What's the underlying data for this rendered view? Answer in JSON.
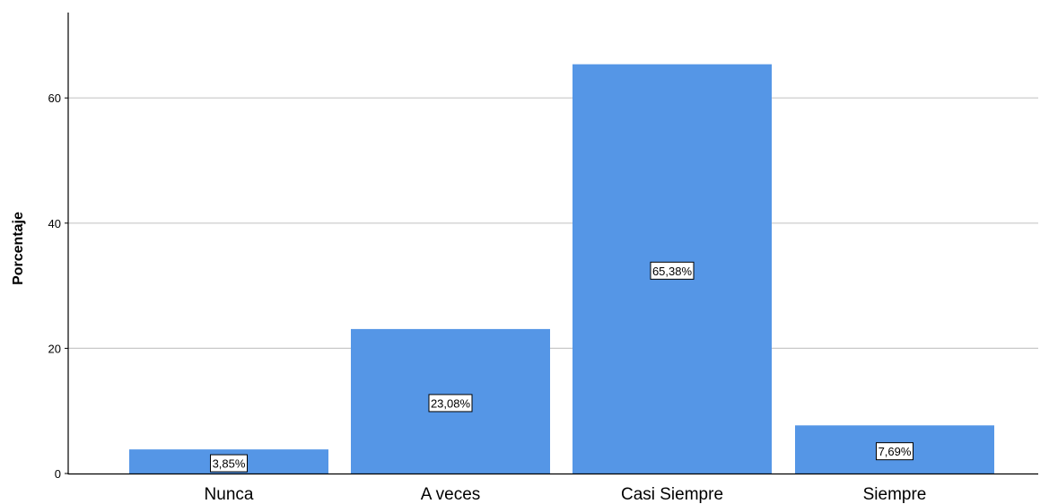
{
  "chart_data": {
    "type": "bar",
    "categories": [
      "Nunca",
      "A veces",
      "Casi Siempre",
      "Siempre"
    ],
    "values": [
      3.85,
      23.08,
      65.38,
      7.69
    ],
    "data_labels": [
      "3,85%",
      "23,08%",
      "65,38%",
      "7,69%"
    ],
    "ylabel": "Porcentaje",
    "xlabel": "",
    "title": "",
    "ylim": [
      0,
      74
    ],
    "yticks": [
      0,
      20,
      40,
      60
    ],
    "ytick_labels": [
      "0",
      "20",
      "40",
      "60"
    ],
    "grid": "horizontal",
    "legend": "none",
    "colors": {
      "bar": "#5596e6",
      "grid": "#c8c8c8",
      "axis": "#000000",
      "label_box_fill": "#ffffff",
      "label_box_stroke": "#000000"
    }
  }
}
